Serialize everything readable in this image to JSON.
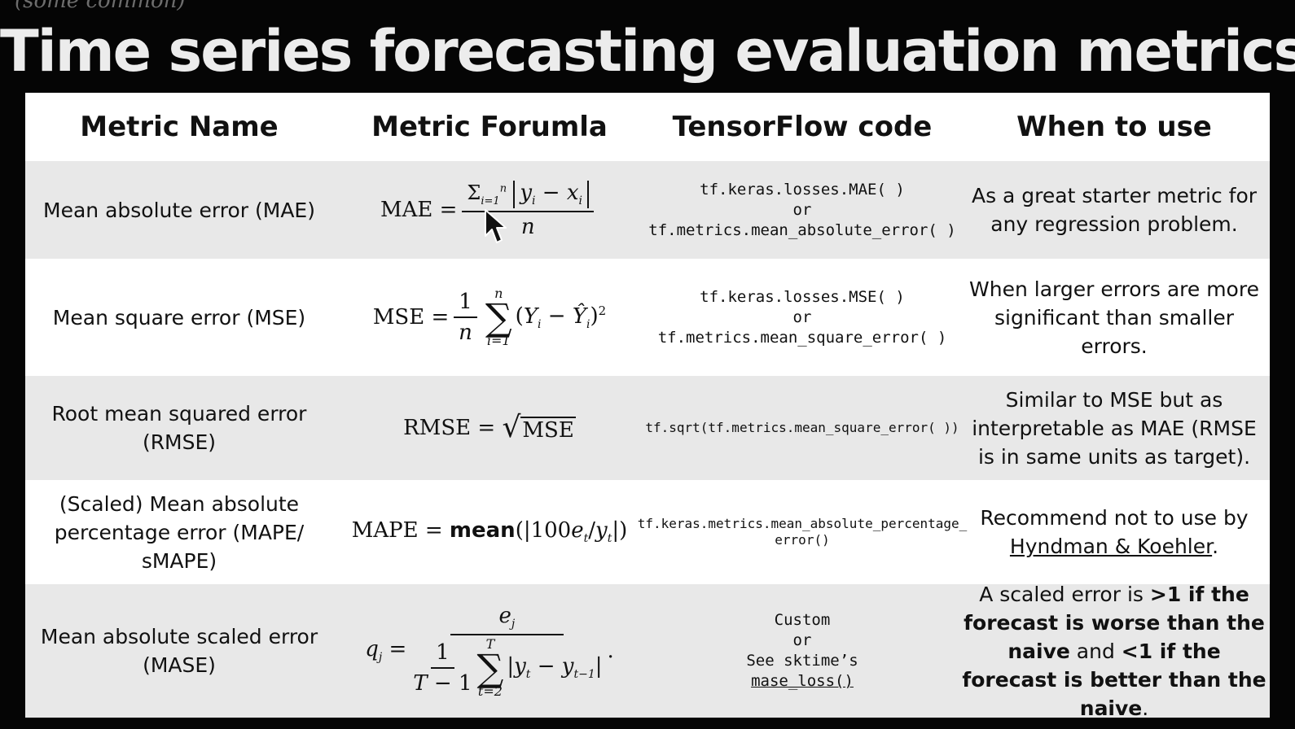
{
  "corner_note": "(some common)",
  "title": "Time series forecasting evaluation metrics",
  "headers": [
    "Metric Name",
    "Metric Forumla",
    "TensorFlow code",
    "When to use"
  ],
  "rows": [
    {
      "name": "Mean absolute error (MAE)",
      "formula": "MAE = Σ_{i=1}^{n} |y_i − x_i| / n",
      "code": [
        "tf.keras.losses.MAE( )",
        "or",
        "tf.metrics.mean_absolute_error( )"
      ],
      "when": "As a great starter metric for any regression problem."
    },
    {
      "name": "Mean square error (MSE)",
      "formula": "MSE = 1/n Σ_{i=1}^{n} (Y_i − Ŷ_i)^2",
      "code": [
        "tf.keras.losses.MSE( )",
        "or",
        "tf.metrics.mean_square_error( )"
      ],
      "when": "When larger errors are more significant than smaller errors."
    },
    {
      "name": "Root mean squared error (RMSE)",
      "formula": "RMSE = √MSE",
      "code": [
        "tf.sqrt(tf.metrics.mean_square_error( ))"
      ],
      "when": "Similar to MSE but as interpretable as MAE (RMSE is in same units as target)."
    },
    {
      "name": "(Scaled) Mean absolute percentage error (MAPE/ sMAPE)",
      "formula": "MAPE = mean(|100e_t/y_t|)",
      "code": [
        "tf.keras.metrics.mean_absolute_percentage_",
        "error()"
      ],
      "when_prefix": "Recommend not to use by ",
      "when_link": "Hyndman & Koehler",
      "when_suffix": "."
    },
    {
      "name": "Mean absolute scaled error (MASE)",
      "formula": "q_j = e_j / (1/(T−1) Σ_{t=2}^{T} |y_t − y_{t−1}|) .",
      "code_lines": [
        "Custom",
        "or"
      ],
      "code_prefix": "See sktime’s ",
      "code_link": "mase_loss()",
      "when_parts": [
        "A scaled error is ",
        ">1 if the forecast is worse than the naive",
        " and ",
        "<1 if the forecast is better than the naive",
        "."
      ]
    }
  ]
}
